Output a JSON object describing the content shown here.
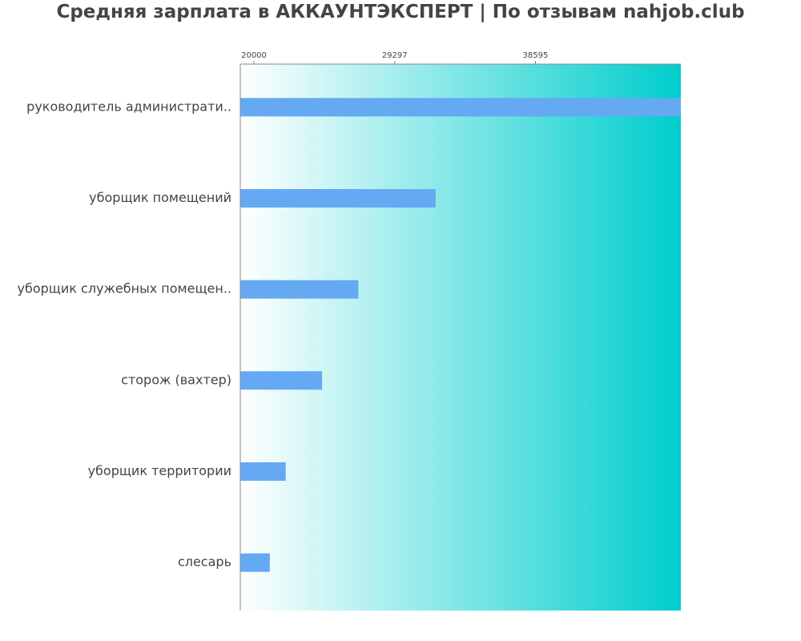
{
  "chart_data": {
    "type": "bar",
    "orientation": "horizontal",
    "title": "Средняя зарплата в АККАУНТЭКСПЕРТ | По отзывам nahjob.club",
    "categories": [
      "руководитель администрати..",
      "уборщик помещений",
      "уборщик служебных помещен..",
      "сторож (вахтер)",
      "уборщик территории",
      "слесарь"
    ],
    "values": [
      48200,
      32000,
      26900,
      24500,
      22100,
      21050
    ],
    "xticks": [
      "20000",
      "29297",
      "38595"
    ],
    "xtick_values": [
      20000,
      29297,
      38595
    ],
    "xlim": [
      19100,
      48200
    ],
    "grid": false,
    "colors": {
      "bar": "#64a9f2",
      "background_start": "#ffffff",
      "background_end": "#00cdcd",
      "axis": "#888888",
      "label": "#444444",
      "title": "#444444"
    }
  }
}
